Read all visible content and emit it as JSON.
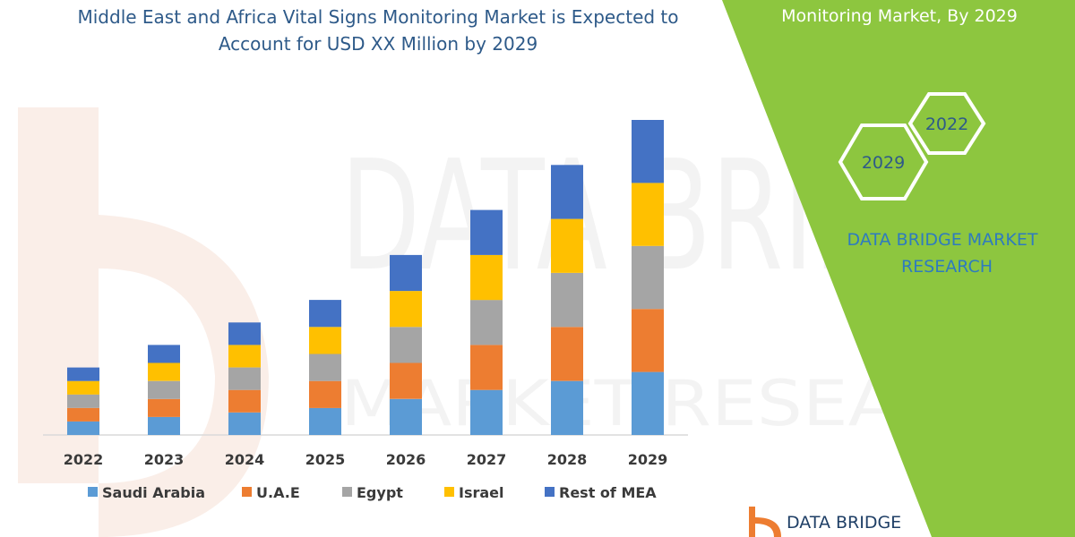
{
  "chart_title": {
    "line1": "Middle East and Africa Vital Signs Monitoring Market is Expected to",
    "line2": "Account for USD XX Million by 2029"
  },
  "side_panel": {
    "heading": "Monitoring Market, By 2029",
    "hex_left_label": "2029",
    "hex_right_label": "2022",
    "brand_line1": "DATA BRIDGE MARKET",
    "brand_line2": "RESEARCH",
    "colors": {
      "panel": "#8dc63f",
      "brand": "#2e7bbf"
    }
  },
  "logo": {
    "text": "DATA BRIDGE",
    "icon": "data-bridge-logo-icon"
  },
  "watermark": {
    "line1": "DATA BRIDGE",
    "line2": "MARKET RESEARCH"
  },
  "chart_data": {
    "type": "bar",
    "stacked": true,
    "title": "Middle East and Africa Vital Signs Monitoring Market is Expected to Account for USD XX Million by 2029",
    "categories": [
      "2022",
      "2023",
      "2024",
      "2025",
      "2026",
      "2027",
      "2028",
      "2029"
    ],
    "series": [
      {
        "name": "Saudi Arabia",
        "color": "#5b9bd5",
        "values": [
          15,
          20,
          25,
          30,
          40,
          50,
          60,
          70
        ]
      },
      {
        "name": "U.A.E",
        "color": "#ed7d31",
        "values": [
          15,
          20,
          25,
          30,
          40,
          50,
          60,
          70
        ]
      },
      {
        "name": "Egypt",
        "color": "#a5a5a5",
        "values": [
          15,
          20,
          25,
          30,
          40,
          50,
          60,
          70
        ]
      },
      {
        "name": "Israel",
        "color": "#ffc000",
        "values": [
          15,
          20,
          25,
          30,
          40,
          50,
          60,
          70
        ]
      },
      {
        "name": "Rest of MEA",
        "color": "#4472c4",
        "values": [
          15,
          20,
          25,
          30,
          40,
          50,
          60,
          70
        ]
      }
    ],
    "xlabel": "",
    "ylabel": "",
    "y_axis_visible": false,
    "grid": false,
    "legend_position": "bottom"
  }
}
